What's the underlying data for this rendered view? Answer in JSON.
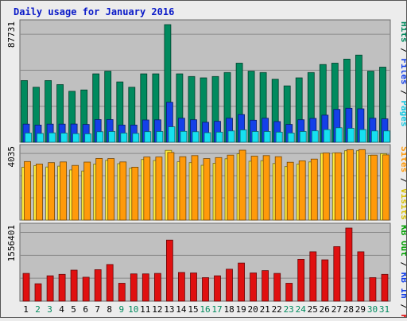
{
  "chart_data": [
    {
      "type": "bar",
      "title": "Daily usage for January 2016",
      "categories": [
        "1",
        "2",
        "3",
        "4",
        "5",
        "6",
        "7",
        "8",
        "9",
        "10",
        "11",
        "12",
        "13",
        "14",
        "15",
        "16",
        "17",
        "18",
        "19",
        "20",
        "21",
        "22",
        "23",
        "24",
        "25",
        "26",
        "27",
        "28",
        "29",
        "30",
        "31"
      ],
      "weekend_days": [
        "2",
        "3",
        "9",
        "10",
        "16",
        "17",
        "23",
        "24",
        "30",
        "31"
      ],
      "y_max_label": "87731",
      "ylim": [
        0,
        87731
      ],
      "legend": [
        "Pages",
        "Files",
        "Hits"
      ],
      "series": [
        {
          "name": "Hits",
          "color": "#008a5e",
          "values": [
            46000,
            41000,
            46000,
            43000,
            38000,
            39000,
            51000,
            53000,
            45000,
            41000,
            51000,
            51000,
            87731,
            51000,
            49000,
            48000,
            49000,
            52000,
            59000,
            53000,
            52000,
            47000,
            42000,
            48000,
            52000,
            58000,
            59000,
            62000,
            65000,
            53000,
            56000
          ]
        },
        {
          "name": "Files",
          "color": "#1440e8",
          "values": [
            13500,
            12800,
            13500,
            13500,
            13600,
            13300,
            16900,
            16900,
            12800,
            12800,
            16600,
            16700,
            29800,
            17900,
            16800,
            14900,
            15600,
            17900,
            20600,
            16400,
            17900,
            15400,
            13300,
            16800,
            17800,
            20200,
            24500,
            25300,
            24900,
            17900,
            17400
          ]
        },
        {
          "name": "Pages",
          "color": "#16e0f0",
          "values": [
            6900,
            6600,
            7000,
            6800,
            6400,
            6300,
            7800,
            8000,
            6800,
            6600,
            7900,
            8000,
            11500,
            8100,
            7800,
            7100,
            7500,
            8400,
            9200,
            8000,
            8000,
            7500,
            6900,
            8000,
            8500,
            9400,
            10800,
            10400,
            9400,
            8400,
            8400
          ]
        }
      ]
    },
    {
      "type": "bar",
      "categories": [
        "1",
        "2",
        "3",
        "4",
        "5",
        "6",
        "7",
        "8",
        "9",
        "10",
        "11",
        "12",
        "13",
        "14",
        "15",
        "16",
        "17",
        "18",
        "19",
        "20",
        "21",
        "22",
        "23",
        "24",
        "25",
        "26",
        "27",
        "28",
        "29",
        "30",
        "31"
      ],
      "y_max_label": "4035",
      "ylim": [
        0,
        4035
      ],
      "legend": [
        "Visits",
        "Sites"
      ],
      "series": [
        {
          "name": "Visits",
          "color": "#ffec3a",
          "values": [
            3020,
            3110,
            3030,
            3080,
            2860,
            2800,
            3200,
            3410,
            3220,
            2960,
            3460,
            3400,
            3980,
            3330,
            3280,
            3130,
            3240,
            3500,
            3780,
            3360,
            3390,
            3230,
            3050,
            3190,
            3320,
            3810,
            3830,
            3960,
            3960,
            3700,
            3790
          ]
        },
        {
          "name": "Sites",
          "color": "#ff9a0a",
          "values": [
            3340,
            3200,
            3280,
            3320,
            3120,
            3310,
            3520,
            3510,
            3320,
            3020,
            3600,
            3600,
            3860,
            3620,
            3680,
            3510,
            3570,
            3710,
            3990,
            3650,
            3680,
            3620,
            3300,
            3380,
            3480,
            3830,
            3840,
            4020,
            4020,
            3710,
            3720
          ]
        }
      ]
    },
    {
      "type": "bar",
      "categories": [
        "1",
        "2",
        "3",
        "4",
        "5",
        "6",
        "7",
        "8",
        "9",
        "10",
        "11",
        "12",
        "13",
        "14",
        "15",
        "16",
        "17",
        "18",
        "19",
        "20",
        "21",
        "22",
        "23",
        "24",
        "25",
        "26",
        "27",
        "28",
        "29",
        "30",
        "31"
      ],
      "y_max_label": "1556401",
      "ylim": [
        0,
        1556401
      ],
      "legend": [
        "KB F",
        "KB In",
        "KB Out"
      ],
      "series": [
        {
          "name": "KB F",
          "color": "#e01010",
          "values": [
            590000,
            370000,
            540000,
            570000,
            660000,
            510000,
            670000,
            780000,
            380000,
            580000,
            580000,
            590000,
            1300000,
            610000,
            600000,
            500000,
            540000,
            680000,
            810000,
            600000,
            650000,
            590000,
            380000,
            890000,
            1050000,
            880000,
            1160000,
            1556401,
            1050000,
            500000,
            570000
          ]
        }
      ]
    }
  ]
}
